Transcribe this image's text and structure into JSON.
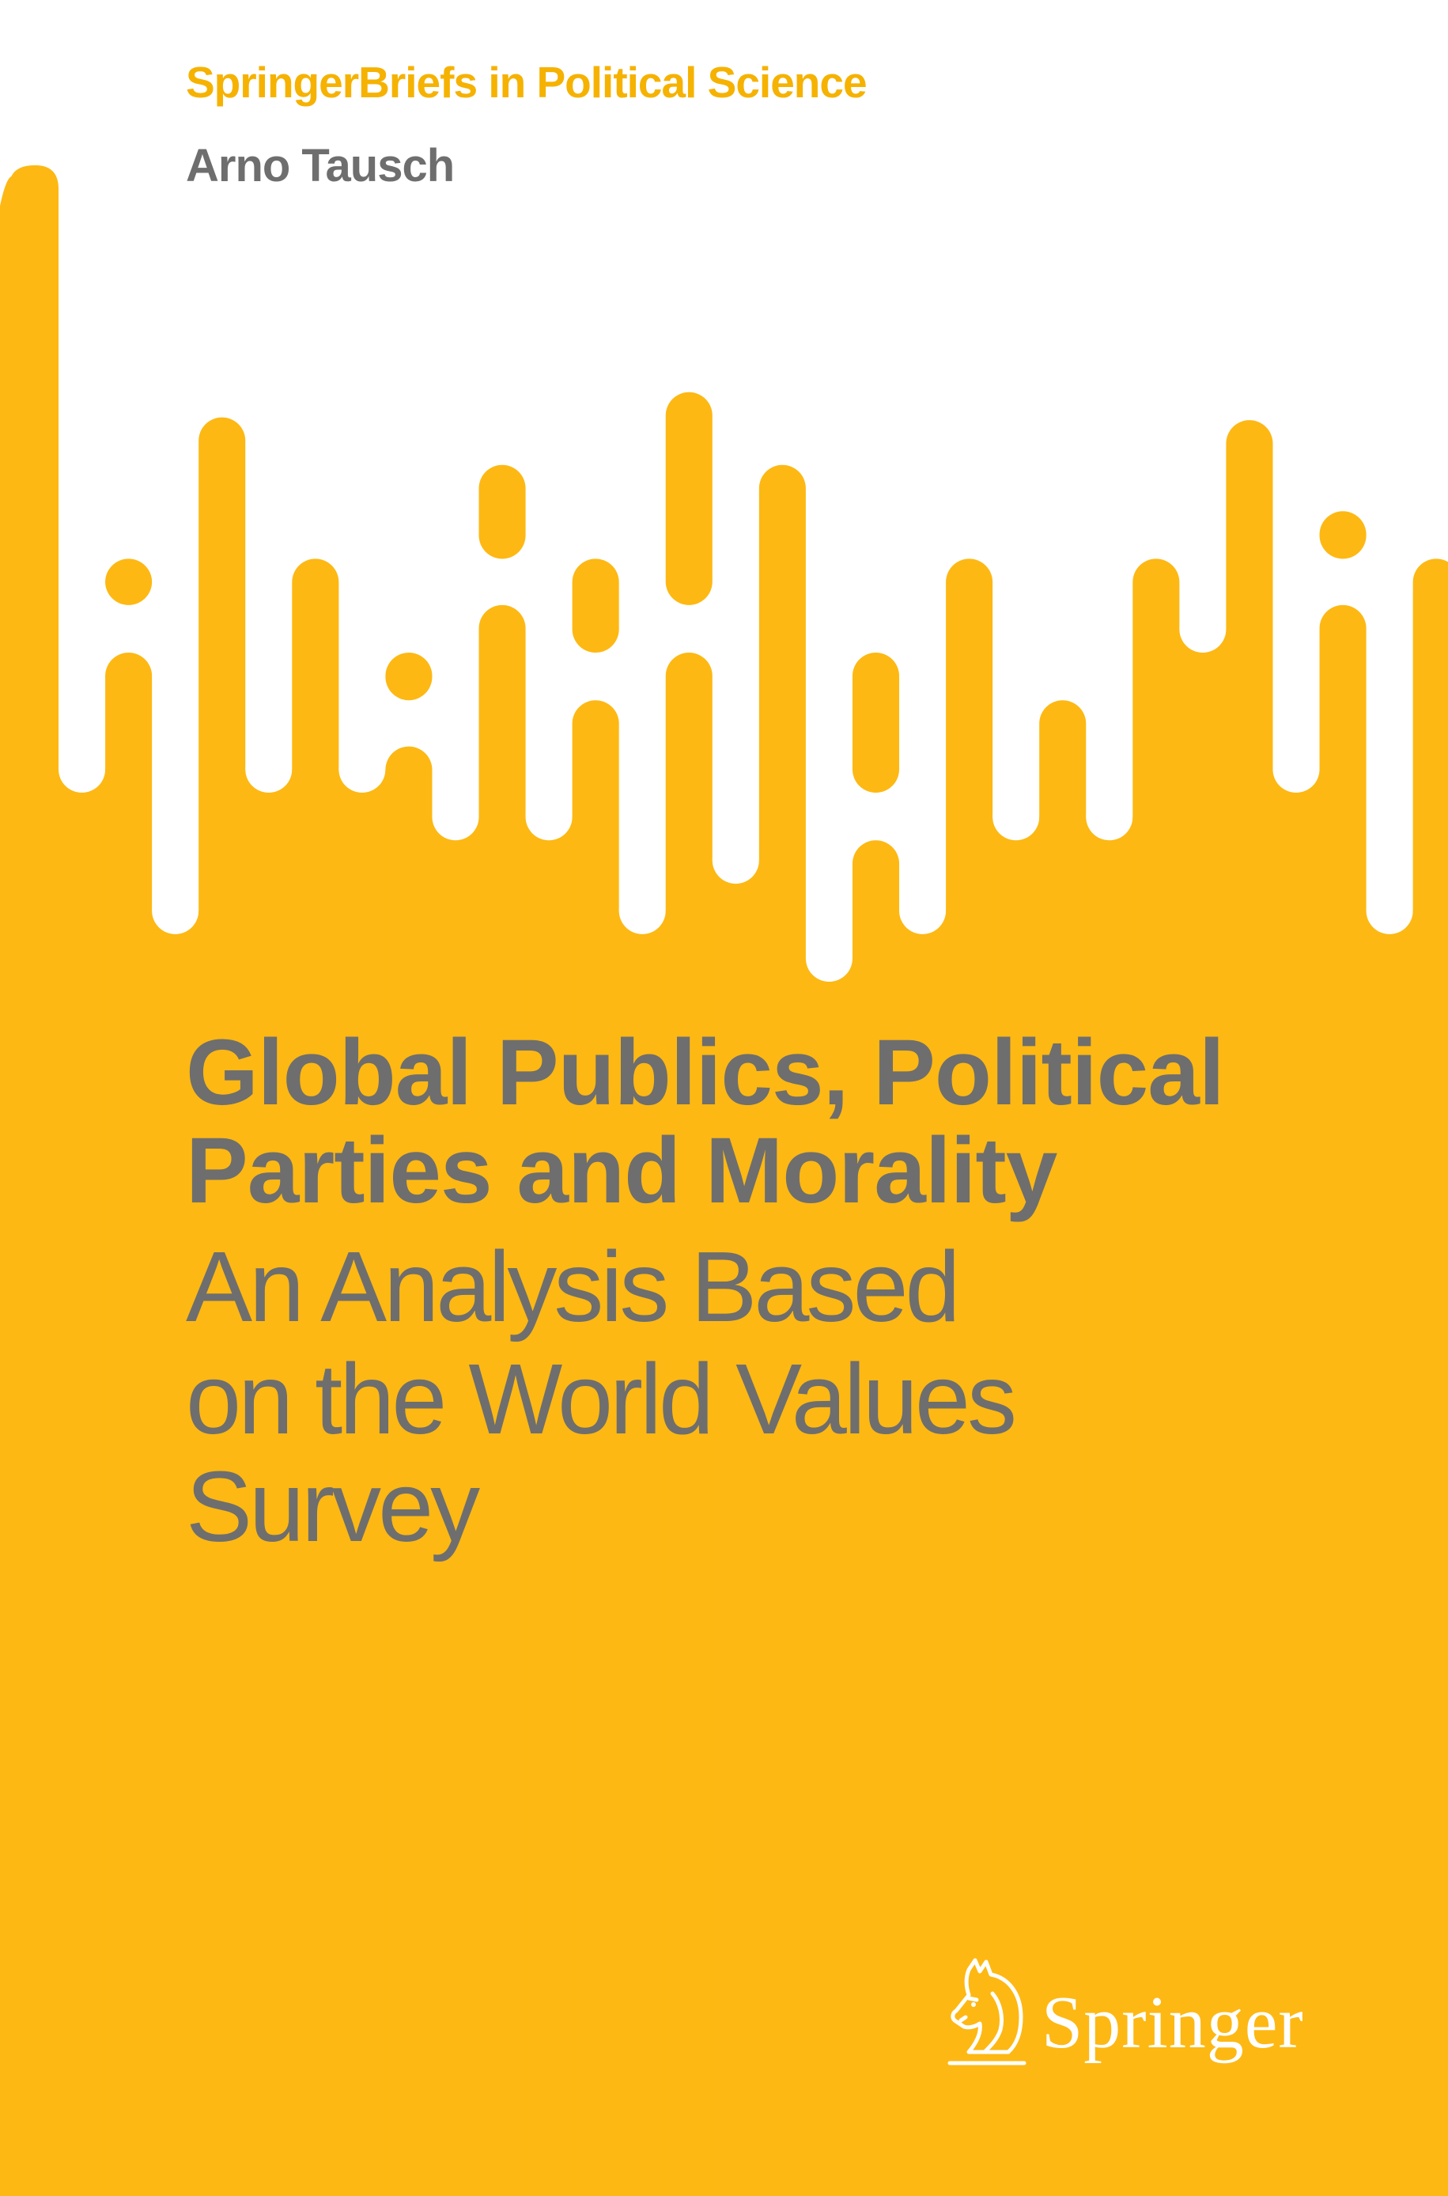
{
  "cover": {
    "series": "SpringerBriefs in Political Science",
    "author": "Arno Tausch",
    "title_lines": [
      "Global Publics, Political",
      "Parties and Morality"
    ],
    "subtitle_lines": [
      "An Analysis Based",
      "on the World Values",
      "Survey"
    ],
    "publisher": "Springer",
    "publisher_logo_icon": "springer-horse-icon"
  },
  "colors": {
    "brand_yellow": "#FDB813",
    "series_text": "#F6B200",
    "text_gray": "#6E6E6E",
    "background_white": "#FFFFFF",
    "logo_white": "#FFFFFF"
  }
}
